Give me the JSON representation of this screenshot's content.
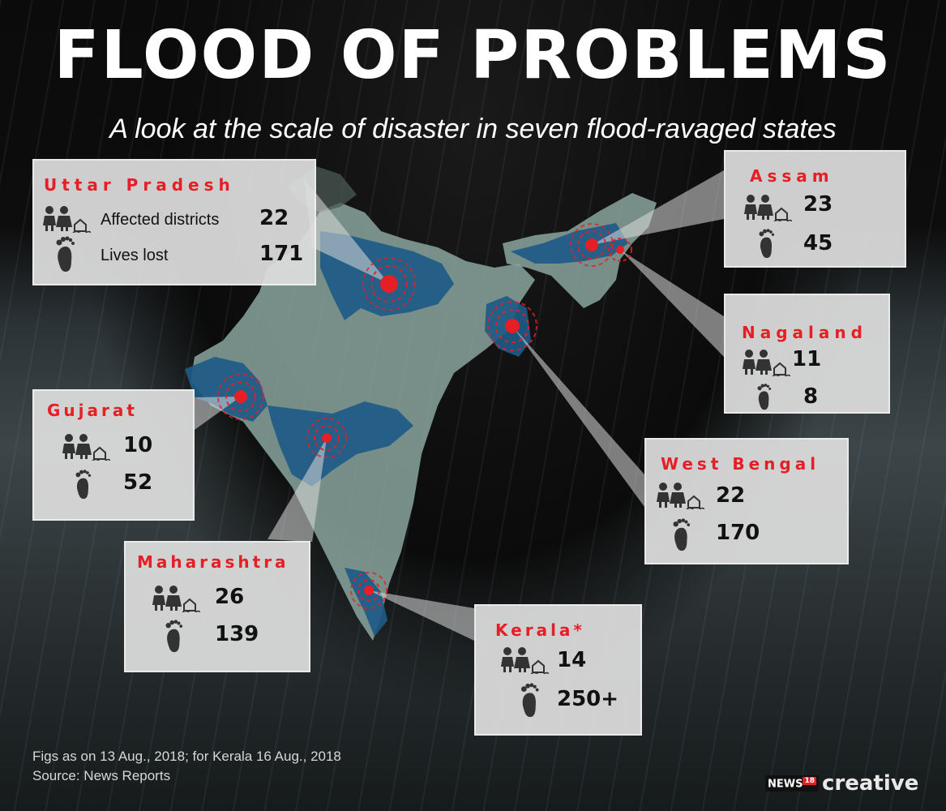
{
  "header": {
    "title": "FLOOD OF PROBLEMS",
    "subtitle": "A look at the scale of disaster in seven flood-ravaged states"
  },
  "colors": {
    "accent_red": "#e61e25",
    "flood_blue": "#1e5a86",
    "map_green": "#8aa69e",
    "card_bg": "#dedede"
  },
  "icons": {
    "districts": "people-house-icon",
    "lives": "footprint-icon"
  },
  "states": {
    "up": {
      "name": "Uttar Pradesh",
      "districts_label": "Affected districts",
      "lives_label": "Lives lost",
      "districts": "22",
      "lives": "171"
    },
    "assam": {
      "name": "Assam",
      "districts": "23",
      "lives": "45"
    },
    "nagaland": {
      "name": "Nagaland",
      "districts": "11",
      "lives": "8"
    },
    "gujarat": {
      "name": "Gujarat",
      "districts": "10",
      "lives": "52"
    },
    "wb": {
      "name": "West Bengal",
      "districts": "22",
      "lives": "170"
    },
    "maharashtra": {
      "name": "Maharashtra",
      "districts": "26",
      "lives": "139"
    },
    "kerala": {
      "name": "Kerala*",
      "districts": "14",
      "lives": "250+"
    }
  },
  "footer": {
    "note": "Figs as on 13 Aug., 2018; for Kerala 16 Aug., 2018",
    "source": "Source: News Reports"
  },
  "brand": {
    "news": "NEWS",
    "num": "18",
    "creative": "creative"
  }
}
